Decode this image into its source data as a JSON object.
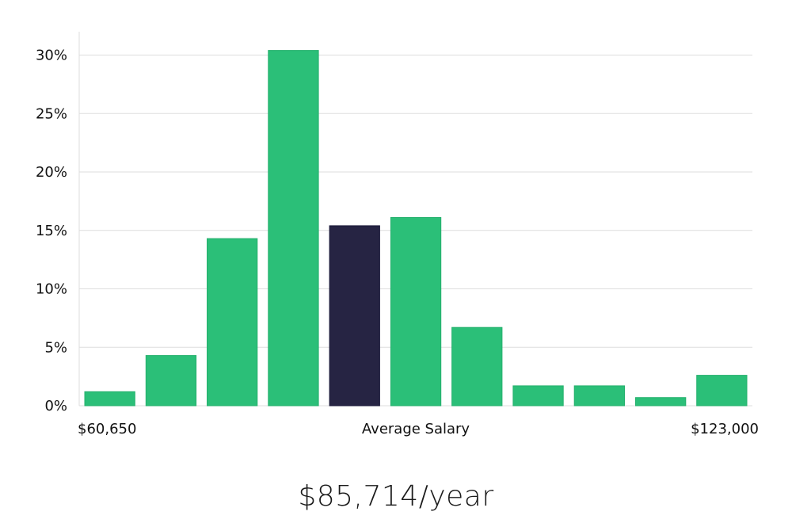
{
  "chart_data": {
    "type": "bar",
    "title": "",
    "xlabel": "Average Salary",
    "ylabel": "",
    "x_range_labels": {
      "min": "$60,650",
      "max": "$123,000"
    },
    "ylim": [
      0,
      32
    ],
    "y_ticks": [
      0,
      5,
      10,
      15,
      20,
      25,
      30
    ],
    "y_tick_labels": [
      "0%",
      "5%",
      "10%",
      "15%",
      "20%",
      "25%",
      "30%"
    ],
    "grid": true,
    "values": [
      1.2,
      4.3,
      14.3,
      30.4,
      15.4,
      16.1,
      6.7,
      1.7,
      1.7,
      0.7,
      2.6
    ],
    "highlight_index": 4,
    "colors": {
      "bar": "#2bbf78",
      "highlight": "#262443",
      "grid": "#dddddd",
      "axis": "#dddddd"
    }
  },
  "salary_summary": "$85,714/year"
}
